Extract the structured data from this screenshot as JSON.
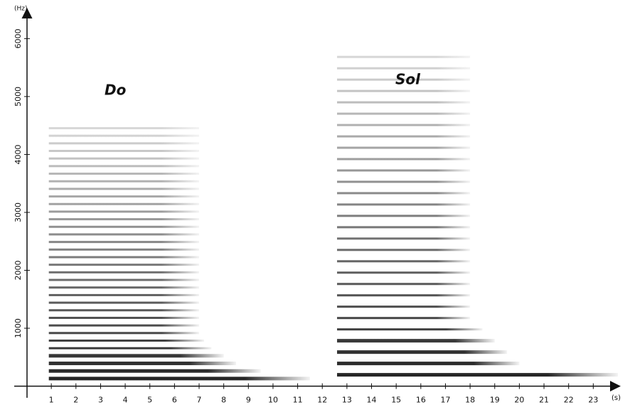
{
  "chart_data": {
    "type": "spectrogram",
    "x_label": "(s)",
    "y_label": "(Hz)",
    "xlim": [
      0,
      24
    ],
    "ylim": [
      0,
      6500
    ],
    "xticks": [
      1,
      2,
      3,
      4,
      5,
      6,
      7,
      8,
      9,
      10,
      11,
      12,
      13,
      14,
      15,
      16,
      17,
      18,
      19,
      20,
      21,
      22,
      23
    ],
    "yticks": [
      1000,
      2000,
      3000,
      4000,
      5000,
      6000
    ],
    "color": "#1a1a1a",
    "series": [
      {
        "name": "Do",
        "start": 0.9,
        "frequencies": [
          131,
          262,
          393,
          524,
          655,
          786,
          917,
          1048,
          1179,
          1310,
          1441,
          1572,
          1703,
          1834,
          1965,
          2096,
          2227,
          2358,
          2489,
          2620,
          2751,
          2882,
          3013,
          3144,
          3275,
          3406,
          3537,
          3668,
          3799,
          3930,
          4061,
          4192,
          4323,
          4454
        ],
        "ends": [
          11.5,
          9.5,
          8.5,
          8,
          7.5,
          7.2,
          7,
          7,
          7,
          7,
          7,
          7,
          7,
          7,
          7,
          7,
          7,
          7,
          7,
          7,
          7,
          7,
          7,
          7,
          7,
          7,
          7,
          7,
          7,
          7,
          7,
          7,
          7,
          7
        ]
      },
      {
        "name": "Sol",
        "start": 12.6,
        "frequencies": [
          196,
          392,
          588,
          784,
          980,
          1176,
          1372,
          1568,
          1764,
          1960,
          2156,
          2352,
          2548,
          2744,
          2940,
          3136,
          3332,
          3528,
          3724,
          3920,
          4116,
          4312,
          4508,
          4704,
          4900,
          5096,
          5292,
          5488,
          5684
        ],
        "ends": [
          24,
          20,
          19.5,
          19,
          18.5,
          18,
          18,
          18,
          18,
          18,
          18,
          18,
          18,
          18,
          18,
          18,
          18,
          18,
          18,
          18,
          18,
          18,
          18,
          18,
          18,
          18,
          18,
          18,
          18
        ]
      }
    ]
  }
}
